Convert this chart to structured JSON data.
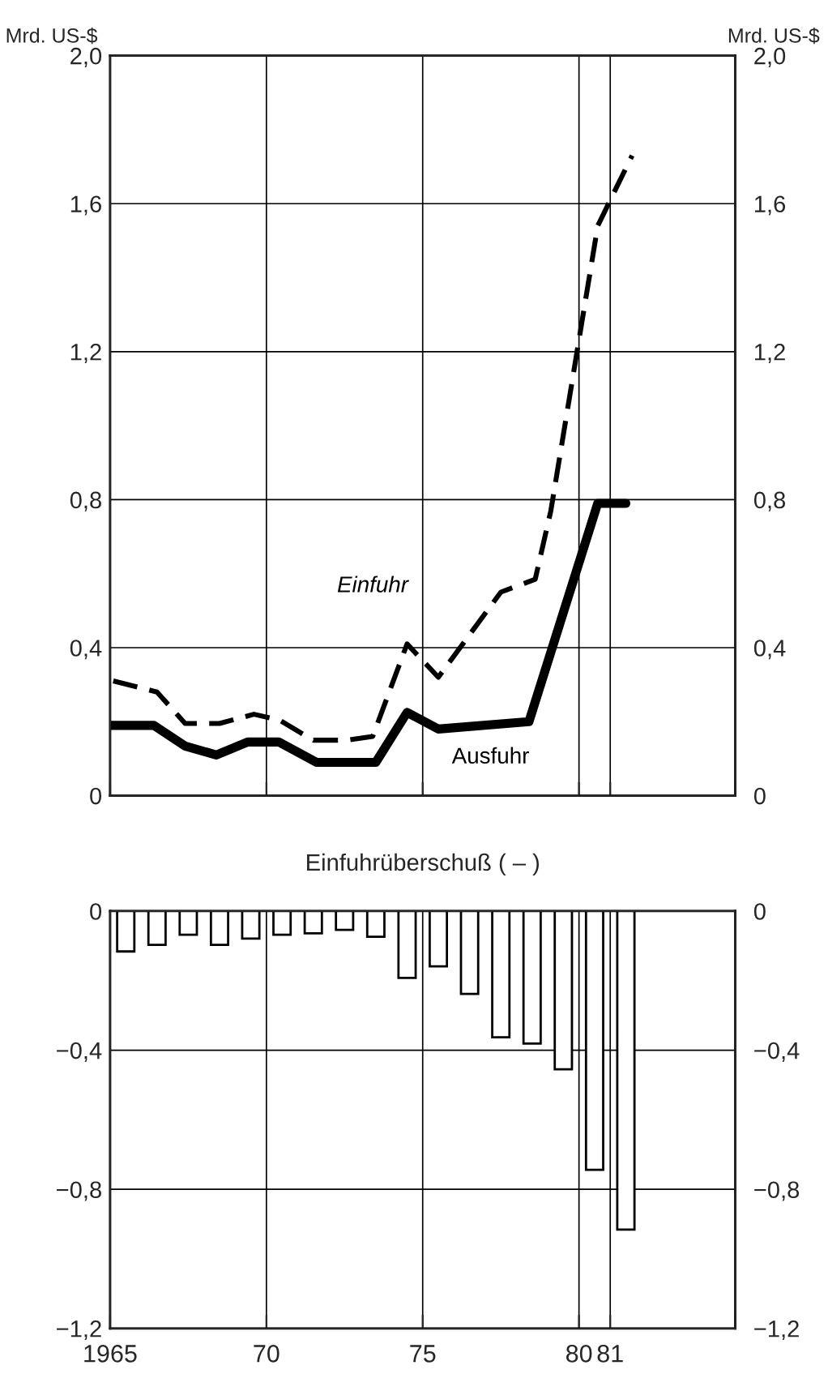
{
  "chart_data": [
    {
      "type": "line",
      "ylabel": "Mrd. US-$",
      "y2label": "Mrd. US-$",
      "xlim": [
        1965,
        1985
      ],
      "xticks": [
        {
          "value": 1965,
          "label": null
        },
        {
          "value": 1970,
          "label": null
        },
        {
          "value": 1975,
          "label": null
        },
        {
          "value": 1980,
          "label": null
        },
        {
          "value": 1981,
          "label": null
        },
        {
          "value": 1985,
          "label": null
        }
      ],
      "ylim": [
        0,
        2.0
      ],
      "yticks": [
        0,
        {
          "value": 0.4,
          "label": "0,4"
        },
        {
          "value": 0.8,
          "label": "0,8"
        },
        {
          "value": 1.2,
          "label": "1,2"
        },
        {
          "value": 1.6,
          "label": "1,6"
        },
        {
          "value": 2.0,
          "label": "2,0"
        }
      ],
      "y2lim": [
        0,
        2.0
      ],
      "y2ticks": [
        0,
        {
          "value": 0.4,
          "label": "0,4"
        },
        {
          "value": 0.8,
          "label": "0,8"
        },
        {
          "value": 1.2,
          "label": "1,2"
        },
        {
          "value": 1.6,
          "label": "1,6"
        },
        {
          "value": 2.0,
          "label": "2,0"
        }
      ],
      "tick_labels": "y",
      "grid": true,
      "series": [
        {
          "name": "Einfuhr",
          "color": "#000000",
          "line_style": "dashed",
          "x": [
            1965.1,
            1966.5,
            1967.4,
            1968.5,
            1969.6,
            1970.4,
            1971.5,
            1972.6,
            1973.4,
            1974.5,
            1975.5,
            1977.5,
            1978.6,
            1979.1,
            1980.6,
            1981.7
          ],
          "values": [
            0.31,
            0.28,
            0.195,
            0.195,
            0.22,
            0.205,
            0.15,
            0.15,
            0.16,
            0.41,
            0.32,
            0.55,
            0.585,
            0.77,
            1.54,
            1.73
          ]
        },
        {
          "name": "Ausfuhr",
          "color": "#000000",
          "line_style": "solid",
          "x": [
            1965.0,
            1966.4,
            1967.4,
            1968.4,
            1969.4,
            1970.4,
            1971.6,
            1973.5,
            1974.5,
            1975.5,
            1978.4,
            1980.6,
            1981.5
          ],
          "values": [
            0.19,
            0.19,
            0.134,
            0.11,
            0.145,
            0.145,
            0.09,
            0.09,
            0.225,
            0.18,
            0.2,
            0.79,
            0.79
          ]
        }
      ]
    },
    {
      "type": "bar",
      "title": "Einfuhrüberschuß ( – )",
      "xlim": [
        1965,
        1985
      ],
      "xticks": [
        {
          "value": 1965,
          "label": "1965"
        },
        {
          "value": 1970,
          "label": "70"
        },
        {
          "value": 1975,
          "label": "75"
        },
        {
          "value": 1980,
          "label": "80"
        },
        {
          "value": 1981,
          "label": "81"
        },
        {
          "value": 1985,
          "label": null
        }
      ],
      "ylim": [
        -1.2,
        0
      ],
      "yticks": [
        {
          "value": -1.2,
          "label": "−1,2"
        },
        {
          "value": -0.8,
          "label": "−0,8"
        },
        {
          "value": -0.4,
          "label": "−0,4"
        },
        0
      ],
      "y2lim": [
        -1.2,
        0
      ],
      "y2ticks": [
        {
          "value": -1.2,
          "label": "−1,2"
        },
        {
          "value": -0.8,
          "label": "−0,8"
        },
        {
          "value": -0.4,
          "label": "−0,4"
        },
        0
      ],
      "grid": true,
      "x": [
        1965.5,
        1966.5,
        1967.5,
        1968.5,
        1969.5,
        1970.5,
        1971.5,
        1972.5,
        1973.5,
        1974.5,
        1975.5,
        1976.5,
        1977.5,
        1978.5,
        1979.5,
        1980.5,
        1981.5
      ],
      "values": [
        -0.116,
        -0.097,
        -0.068,
        -0.097,
        -0.079,
        -0.068,
        -0.064,
        -0.054,
        -0.074,
        -0.192,
        -0.159,
        -0.238,
        -0.363,
        -0.381,
        -0.455,
        -0.744,
        -0.916
      ],
      "color": "#ffffff"
    }
  ]
}
